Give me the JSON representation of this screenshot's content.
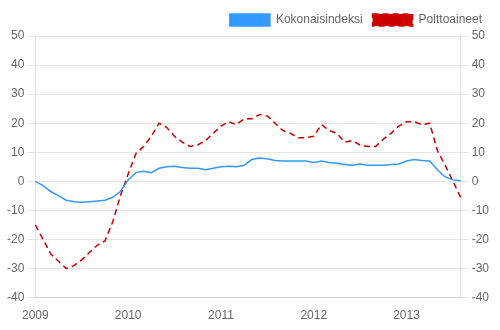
{
  "chart_data": {
    "type": "line",
    "categories": [
      "2009",
      null,
      null,
      null,
      null,
      null,
      null,
      null,
      null,
      null,
      null,
      null,
      "2010",
      null,
      null,
      null,
      null,
      null,
      null,
      null,
      null,
      null,
      null,
      null,
      "2011",
      null,
      null,
      null,
      null,
      null,
      null,
      null,
      null,
      null,
      null,
      null,
      "2012",
      null,
      null,
      null,
      null,
      null,
      null,
      null,
      null,
      null,
      null,
      null,
      "2013",
      null,
      null,
      null,
      null,
      null,
      null,
      null
    ],
    "series": [
      {
        "name": "Kokonaisindeksi",
        "color": "#3399FF",
        "line_style": "solid",
        "values": [
          0.0,
          -1.5,
          -3.5,
          -5.0,
          -6.5,
          -7.0,
          -7.2,
          -7.0,
          -6.8,
          -6.5,
          -5.5,
          -3.5,
          0.5,
          3.0,
          3.5,
          3.0,
          4.5,
          5.0,
          5.2,
          4.8,
          4.5,
          4.5,
          4.0,
          4.5,
          5.0,
          5.2,
          5.0,
          5.5,
          7.5,
          8.0,
          7.8,
          7.2,
          7.0,
          7.0,
          7.0,
          7.0,
          6.5,
          7.0,
          6.5,
          6.2,
          5.8,
          5.5,
          6.0,
          5.5,
          5.5,
          5.5,
          5.8,
          6.0,
          7.0,
          7.5,
          7.2,
          7.0,
          4.0,
          1.5,
          0.5,
          0.2
        ]
      },
      {
        "name": "Polttoaineet",
        "color": "#CC0000",
        "line_style": "dashed",
        "values": [
          -15.0,
          -20.0,
          -25.0,
          -27.5,
          -30.0,
          -29.0,
          -27.0,
          -24.5,
          -22.0,
          -20.5,
          -14.0,
          -5.0,
          2.5,
          9.5,
          12.0,
          15.5,
          20.0,
          18.5,
          15.5,
          13.5,
          12.0,
          12.5,
          14.0,
          16.5,
          19.0,
          20.5,
          19.5,
          21.5,
          21.5,
          23.0,
          22.5,
          20.0,
          17.5,
          16.5,
          15.0,
          15.0,
          15.5,
          19.5,
          17.5,
          16.5,
          13.5,
          14.0,
          12.5,
          12.0,
          12.0,
          14.5,
          16.5,
          19.0,
          20.5,
          20.5,
          19.5,
          20.0,
          10.5,
          5.5,
          0.0,
          -5.5
        ]
      }
    ],
    "ylim": [
      -40,
      50
    ],
    "yticks": [
      -40,
      -30,
      -20,
      -10,
      0,
      10,
      20,
      30,
      40,
      50
    ],
    "y2lim": [
      -40,
      50
    ],
    "y2ticks": [
      -40,
      -30,
      -20,
      -10,
      0,
      10,
      20,
      30,
      40,
      50
    ],
    "grid": true,
    "legend": "upper right"
  }
}
